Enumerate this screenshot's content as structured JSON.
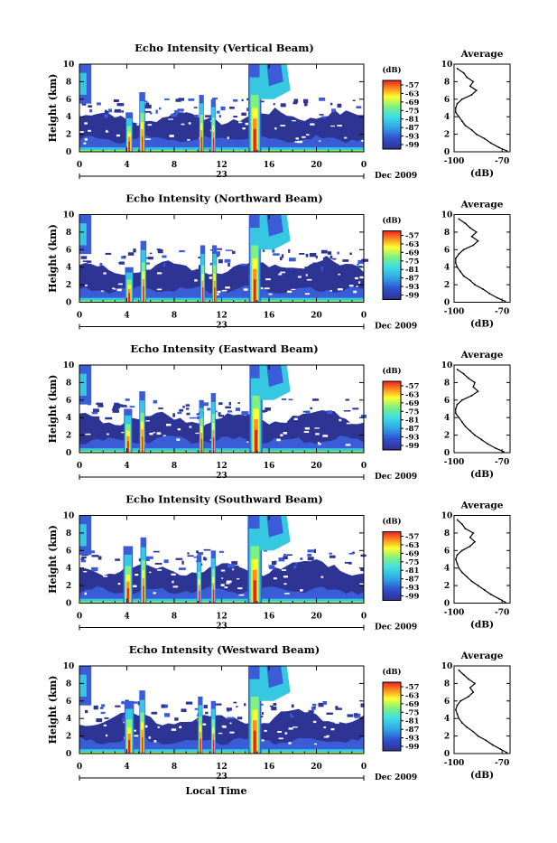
{
  "chart_data": [
    {
      "type": "heatmap",
      "title": "Echo Intensity (Vertical Beam)",
      "ylabel": "Height (km)",
      "xlim": [
        0,
        24
      ],
      "ylim": [
        0,
        10
      ],
      "x_ticks": [
        "0",
        "4",
        "8",
        "12",
        "16",
        "20",
        "0"
      ],
      "y_ticks": [
        "0",
        "2",
        "4",
        "6",
        "8",
        "10"
      ],
      "day_label": "23",
      "month_label": "Dec 2009",
      "colorbar": {
        "unit": "(dB)",
        "ticks": [
          "-57",
          "-63",
          "-69",
          "-75",
          "-81",
          "-87",
          "-93",
          "-99"
        ]
      },
      "convective_cells": [
        {
          "time": 4.2,
          "width": 0.6,
          "top": 4.5
        },
        {
          "time": 5.3,
          "width": 0.5,
          "top": 6.8
        },
        {
          "time": 10.3,
          "width": 0.4,
          "top": 6.5
        },
        {
          "time": 11.3,
          "width": 0.4,
          "top": 6.0
        },
        {
          "time": 14.8,
          "width": 1.1,
          "top": 10.0
        }
      ],
      "average_profile": {
        "title": "Average",
        "xlabel": "(dB)",
        "xlim": [
          -100,
          -65
        ],
        "x_ticks": [
          "-100",
          "-70"
        ],
        "height": [
          0.1,
          0.5,
          1.0,
          1.5,
          2.0,
          2.5,
          3.0,
          3.5,
          4.0,
          4.5,
          5.0,
          5.5,
          6.0,
          6.5,
          7.0,
          7.5,
          8.0,
          8.5,
          9.0,
          9.5
        ],
        "db": [
          -67,
          -72,
          -77,
          -81,
          -86,
          -89,
          -93,
          -95,
          -97,
          -99,
          -99,
          -98,
          -95,
          -89,
          -86,
          -90,
          -88,
          -92,
          -94,
          -98
        ]
      }
    },
    {
      "type": "heatmap",
      "title": "Echo Intensity (Northward Beam)",
      "ylabel": "Height (km)",
      "xlim": [
        0,
        24
      ],
      "ylim": [
        0,
        10
      ],
      "x_ticks": [
        "0",
        "4",
        "8",
        "12",
        "16",
        "20",
        "0"
      ],
      "y_ticks": [
        "0",
        "2",
        "4",
        "6",
        "8",
        "10"
      ],
      "day_label": "23",
      "month_label": "Dec 2009",
      "colorbar": {
        "unit": "(dB)",
        "ticks": [
          "-57",
          "-63",
          "-69",
          "-75",
          "-81",
          "-87",
          "-93",
          "-99"
        ]
      },
      "convective_cells": [
        {
          "time": 4.2,
          "width": 0.7,
          "top": 4.0
        },
        {
          "time": 5.4,
          "width": 0.5,
          "top": 7.0
        },
        {
          "time": 10.4,
          "width": 0.4,
          "top": 6.5
        },
        {
          "time": 11.4,
          "width": 0.4,
          "top": 6.5
        },
        {
          "time": 14.8,
          "width": 1.0,
          "top": 10.0
        }
      ],
      "average_profile": {
        "title": "Average",
        "xlabel": "(dB)",
        "xlim": [
          -100,
          -65
        ],
        "x_ticks": [
          "-100",
          "-70"
        ],
        "height": [
          0.1,
          0.5,
          1.0,
          1.5,
          2.0,
          2.5,
          3.0,
          3.5,
          4.0,
          4.5,
          5.0,
          5.5,
          6.0,
          6.5,
          7.0,
          7.5,
          8.0,
          8.5,
          9.0,
          9.5
        ],
        "db": [
          -68,
          -73,
          -78,
          -82,
          -87,
          -90,
          -94,
          -96,
          -98,
          -99,
          -99,
          -97,
          -94,
          -88,
          -85,
          -89,
          -86,
          -90,
          -93,
          -97
        ]
      }
    },
    {
      "type": "heatmap",
      "title": "Echo Intensity (Eastward Beam)",
      "ylabel": "Height (km)",
      "xlim": [
        0,
        24
      ],
      "ylim": [
        0,
        10
      ],
      "x_ticks": [
        "0",
        "4",
        "8",
        "12",
        "16",
        "20",
        "0"
      ],
      "y_ticks": [
        "0",
        "2",
        "4",
        "6",
        "8",
        "10"
      ],
      "day_label": "23",
      "month_label": "Dec 2009",
      "colorbar": {
        "unit": "(dB)",
        "ticks": [
          "-57",
          "-63",
          "-69",
          "-75",
          "-81",
          "-87",
          "-93",
          "-99"
        ]
      },
      "convective_cells": [
        {
          "time": 4.1,
          "width": 0.7,
          "top": 5.0
        },
        {
          "time": 5.3,
          "width": 0.5,
          "top": 7.0
        },
        {
          "time": 10.3,
          "width": 0.4,
          "top": 6.0
        },
        {
          "time": 11.3,
          "width": 0.4,
          "top": 6.8
        },
        {
          "time": 14.9,
          "width": 1.1,
          "top": 10.0
        }
      ],
      "average_profile": {
        "title": "Average",
        "xlabel": "(dB)",
        "xlim": [
          -100,
          -65
        ],
        "x_ticks": [
          "-100",
          "-70"
        ],
        "height": [
          0.1,
          0.5,
          1.0,
          1.5,
          2.0,
          2.5,
          3.0,
          3.5,
          4.0,
          4.5,
          5.0,
          5.5,
          6.0,
          6.5,
          7.0,
          7.5,
          8.0,
          8.5,
          9.0,
          9.5
        ],
        "db": [
          -69,
          -74,
          -79,
          -83,
          -87,
          -90,
          -93,
          -95,
          -97,
          -99,
          -99,
          -98,
          -95,
          -89,
          -85,
          -88,
          -87,
          -91,
          -94,
          -98
        ]
      }
    },
    {
      "type": "heatmap",
      "title": "Echo Intensity (Southward Beam)",
      "ylabel": "Height (km)",
      "xlim": [
        0,
        24
      ],
      "ylim": [
        0,
        10
      ],
      "x_ticks": [
        "0",
        "4",
        "8",
        "12",
        "16",
        "20",
        "0"
      ],
      "y_ticks": [
        "0",
        "2",
        "4",
        "6",
        "8",
        "10"
      ],
      "day_label": "23",
      "month_label": "Dec 2009",
      "colorbar": {
        "unit": "(dB)",
        "ticks": [
          "-57",
          "-63",
          "-69",
          "-75",
          "-81",
          "-87",
          "-93",
          "-99"
        ]
      },
      "convective_cells": [
        {
          "time": 4.1,
          "width": 0.8,
          "top": 6.5
        },
        {
          "time": 5.4,
          "width": 0.5,
          "top": 7.5
        },
        {
          "time": 10.1,
          "width": 0.4,
          "top": 5.5
        },
        {
          "time": 11.3,
          "width": 0.4,
          "top": 6.0
        },
        {
          "time": 14.8,
          "width": 1.2,
          "top": 10.0
        }
      ],
      "average_profile": {
        "title": "Average",
        "xlabel": "(dB)",
        "xlim": [
          -100,
          -65
        ],
        "x_ticks": [
          "-100",
          "-70"
        ],
        "height": [
          0.1,
          0.5,
          1.0,
          1.5,
          2.0,
          2.5,
          3.0,
          3.5,
          4.0,
          4.5,
          5.0,
          5.5,
          6.0,
          6.5,
          7.0,
          7.5,
          8.0,
          8.5,
          9.0,
          9.5
        ],
        "db": [
          -68,
          -72,
          -77,
          -81,
          -85,
          -89,
          -92,
          -95,
          -97,
          -98,
          -99,
          -98,
          -95,
          -90,
          -87,
          -90,
          -88,
          -93,
          -95,
          -98
        ]
      }
    },
    {
      "type": "heatmap",
      "title": "Echo Intensity (Westward Beam)",
      "ylabel": "Height (km)",
      "xlabel": "Local Time",
      "xlim": [
        0,
        24
      ],
      "ylim": [
        0,
        10
      ],
      "x_ticks": [
        "0",
        "4",
        "8",
        "12",
        "16",
        "20",
        "0"
      ],
      "y_ticks": [
        "0",
        "2",
        "4",
        "6",
        "8",
        "10"
      ],
      "day_label": "23",
      "month_label": "Dec 2009",
      "colorbar": {
        "unit": "(dB)",
        "ticks": [
          "-57",
          "-63",
          "-69",
          "-75",
          "-81",
          "-87",
          "-93",
          "-99"
        ]
      },
      "convective_cells": [
        {
          "time": 4.2,
          "width": 0.8,
          "top": 6.0
        },
        {
          "time": 5.3,
          "width": 0.5,
          "top": 7.2
        },
        {
          "time": 10.2,
          "width": 0.4,
          "top": 6.5
        },
        {
          "time": 11.3,
          "width": 0.4,
          "top": 6.0
        },
        {
          "time": 14.8,
          "width": 1.1,
          "top": 10.0
        }
      ],
      "average_profile": {
        "title": "Average",
        "xlabel": "(dB)",
        "xlim": [
          -100,
          -65
        ],
        "x_ticks": [
          "-100",
          "-70"
        ],
        "height": [
          0.1,
          0.5,
          1.0,
          1.5,
          2.0,
          2.5,
          3.0,
          3.5,
          4.0,
          4.5,
          5.0,
          5.5,
          6.0,
          6.5,
          7.0,
          7.5,
          8.0,
          8.5,
          9.0,
          9.5
        ],
        "db": [
          -67,
          -71,
          -76,
          -80,
          -85,
          -88,
          -92,
          -95,
          -97,
          -98,
          -99,
          -98,
          -96,
          -91,
          -88,
          -90,
          -87,
          -91,
          -94,
          -97
        ]
      }
    }
  ]
}
